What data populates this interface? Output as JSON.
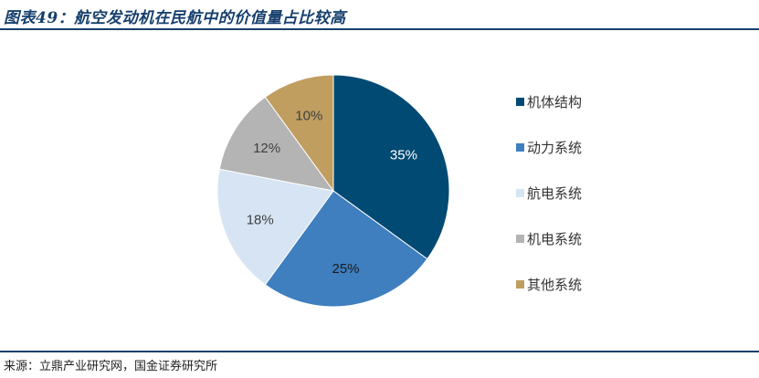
{
  "header": {
    "title": "图表49：航空发动机在民航中的价值量占比较高"
  },
  "footer": {
    "source": "来源：立鼎产业研究网，国金证券研究所"
  },
  "chart_data": {
    "type": "pie",
    "categories": [
      "机体结构",
      "动力系统",
      "航电系统",
      "机电系统",
      "其他系统"
    ],
    "values": [
      35,
      25,
      18,
      12,
      10
    ],
    "labels": [
      "35%",
      "25%",
      "18%",
      "12%",
      "10%"
    ],
    "colors": [
      "#004a73",
      "#3f7fbf",
      "#d6e4f4",
      "#b4b4b4",
      "#c09e60"
    ],
    "label_colors": [
      "#ffffff",
      "#1a1a1a",
      "#404040",
      "#404040",
      "#404040"
    ],
    "legend_position": "right",
    "start_angle": "top",
    "direction": "clockwise"
  }
}
